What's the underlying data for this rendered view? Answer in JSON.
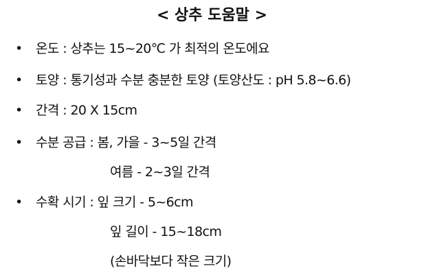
{
  "document": {
    "title": "< 상추 도움말 >",
    "bullet_glyph": "•",
    "items": [
      {
        "text": "온도 : 상추는 15~20℃ 가 최적의 온도에요"
      },
      {
        "text": "토양 : 통기성과 수분 충분한 토양 (토양산도 : pH 5.8~6.6)"
      },
      {
        "text": "간격 : 20 X 15cm"
      },
      {
        "text": "수분 공급 : 봄, 가을 - 3~5일 간격",
        "continuation": [
          "여름 - 2~3일 간격"
        ]
      },
      {
        "text": "수확 시기 : 잎 크기 - 5~6cm",
        "continuation": [
          "잎 길이 - 15~18cm",
          "(손바닥보다 작은 크기)"
        ]
      }
    ]
  }
}
